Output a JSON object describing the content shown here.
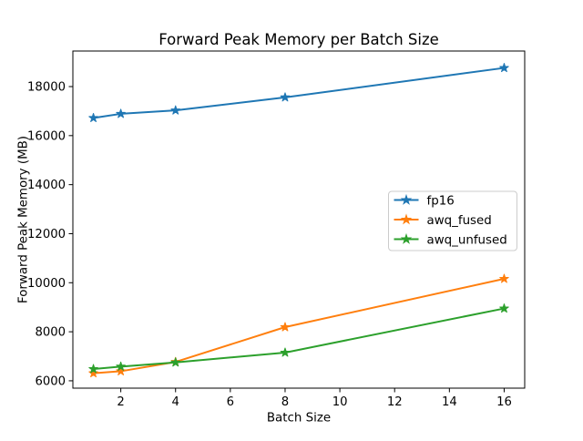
{
  "chart_data": {
    "type": "line",
    "title": "Forward Peak Memory per Batch Size",
    "xlabel": "Batch Size",
    "ylabel": "Forward Peak Memory (MB)",
    "x": [
      1,
      2,
      4,
      8,
      16
    ],
    "series": [
      {
        "name": "fp16",
        "color": "#1f77b4",
        "values": [
          16720,
          16890,
          17030,
          17560,
          18760
        ]
      },
      {
        "name": "awq_fused",
        "color": "#ff7f0e",
        "values": [
          6310,
          6390,
          6770,
          8190,
          10160
        ]
      },
      {
        "name": "awq_unfused",
        "color": "#2ca02c",
        "values": [
          6480,
          6580,
          6750,
          7150,
          8950
        ]
      }
    ],
    "marker": "star",
    "xticks": [
      2,
      4,
      6,
      8,
      10,
      12,
      14,
      16
    ],
    "yticks": [
      6000,
      8000,
      10000,
      12000,
      14000,
      16000,
      18000
    ],
    "xlim": [
      0.25,
      16.75
    ],
    "ylim": [
      5700,
      19450
    ],
    "grid": false,
    "legend_position": "center right",
    "colors": {
      "axes": "#000000",
      "legend_border": "#cccccc",
      "background": "#ffffff"
    }
  }
}
